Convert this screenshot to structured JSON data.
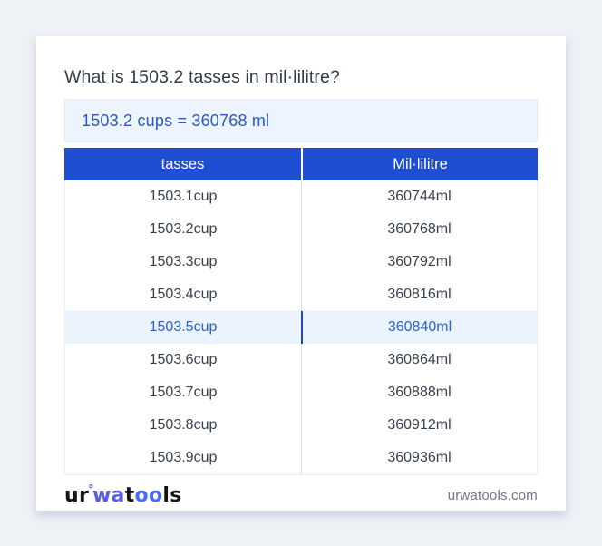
{
  "page": {
    "title": "What is 1503.2 tasses in mil·lilitre?",
    "result": "1503.2 cups = 360768 ml"
  },
  "table": {
    "headers": [
      "tasses",
      "Mil·lilitre"
    ],
    "highlight_index": 4,
    "rows": [
      {
        "tasses": "1503.1cup",
        "ml": "360744ml",
        "highlighted": false
      },
      {
        "tasses": "1503.2cup",
        "ml": "360768ml",
        "highlighted": false
      },
      {
        "tasses": "1503.3cup",
        "ml": "360792ml",
        "highlighted": false
      },
      {
        "tasses": "1503.4cup",
        "ml": "360816ml",
        "highlighted": false
      },
      {
        "tasses": "1503.5cup",
        "ml": "360840ml",
        "highlighted": true
      },
      {
        "tasses": "1503.6cup",
        "ml": "360864ml",
        "highlighted": false
      },
      {
        "tasses": "1503.7cup",
        "ml": "360888ml",
        "highlighted": false
      },
      {
        "tasses": "1503.8cup",
        "ml": "360912ml",
        "highlighted": false
      },
      {
        "tasses": "1503.9cup",
        "ml": "360936ml",
        "highlighted": false
      }
    ]
  },
  "footer": {
    "logo": {
      "part1": "ur",
      "ring": "°",
      "part2": "wa",
      "part3": "t",
      "part4": "oo",
      "part5": "ls"
    },
    "site": "urwatools.com"
  },
  "colors": {
    "page_background": "#eef1f6",
    "card_background": "#ffffff",
    "header_blue": "#1e4ed2",
    "result_box_background": "#edf4fd",
    "result_text_blue": "#2b59c3",
    "highlight_row_background": "#eaf3fe",
    "highlight_text_blue": "#2a63cb",
    "row_text": "#3a414c",
    "divider_gray": "#dde3e8",
    "logo_blue": "#5b5ce4",
    "site_text_gray": "#707786"
  }
}
